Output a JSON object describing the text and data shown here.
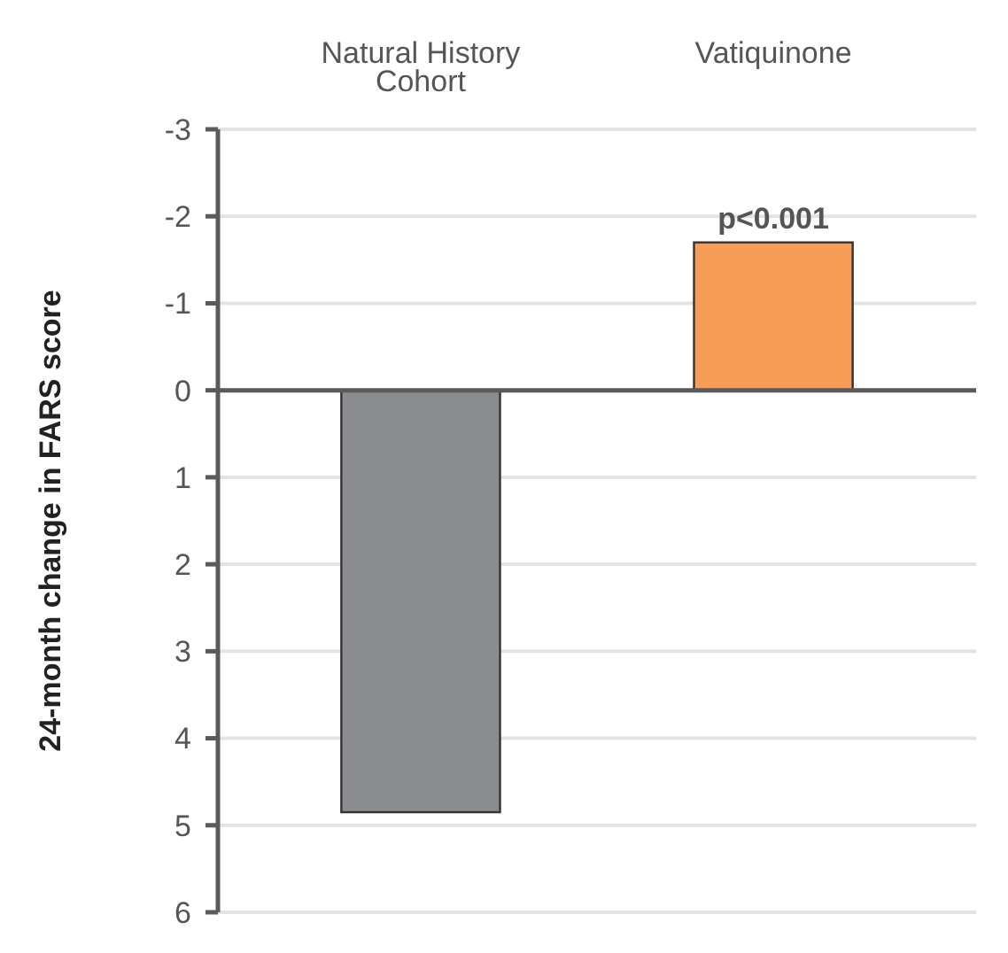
{
  "chart_data": {
    "type": "bar",
    "ylabel": "24-month change in FARS score",
    "categories": [
      "Natural History Cohort",
      "Vatiquinone"
    ],
    "values": [
      4.85,
      -1.7
    ],
    "colors": [
      "#8a8c8f",
      "#f79d58"
    ],
    "ylim": [
      6,
      -3
    ],
    "yticks": [
      -3,
      -2,
      -1,
      0,
      1,
      2,
      3,
      4,
      5,
      6
    ],
    "grid": "y",
    "annotations": [
      {
        "text": "p<0.001",
        "x": "Vatiquinone",
        "y": -1.7
      }
    ]
  }
}
